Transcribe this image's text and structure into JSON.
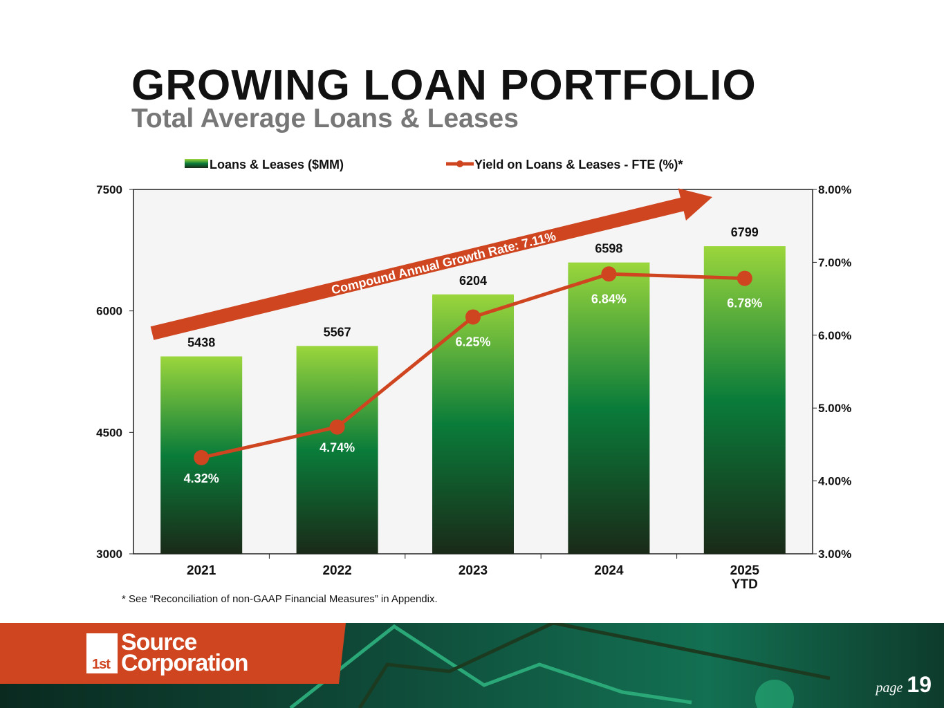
{
  "header": {
    "title": "GROWING LOAN PORTFOLIO",
    "subtitle": "Total Average Loans & Leases"
  },
  "chart_data": {
    "type": "bar+line",
    "categories": [
      "2021",
      "2022",
      "2023",
      "2024",
      "2025\nYTD"
    ],
    "category_lines": [
      [
        "2021"
      ],
      [
        "2022"
      ],
      [
        "2023"
      ],
      [
        "2024"
      ],
      [
        "2025",
        "YTD"
      ]
    ],
    "series": [
      {
        "name": "Loans & Leases ($MM)",
        "type": "bar",
        "axis": "left",
        "values": [
          5438,
          5567,
          6204,
          6598,
          6799
        ],
        "labels": [
          "5438",
          "5567",
          "6204",
          "6598",
          "6799"
        ]
      },
      {
        "name": "Yield on Loans & Leases - FTE (%)*",
        "type": "line",
        "axis": "right",
        "values": [
          4.32,
          4.74,
          6.25,
          6.84,
          6.78
        ],
        "labels": [
          "4.32%",
          "4.74%",
          "6.25%",
          "6.84%",
          "6.78%"
        ]
      }
    ],
    "left_axis": {
      "range": [
        3000,
        7500
      ],
      "ticks": [
        "3000",
        "4500",
        "6000",
        "7500"
      ]
    },
    "right_axis": {
      "range": [
        3,
        8
      ],
      "ticks": [
        "3.00%",
        "4.00%",
        "5.00%",
        "6.00%",
        "7.00%",
        "8.00%"
      ]
    },
    "annotation": "Compound Annual Growth Rate: 7.11%",
    "legend_position": "top",
    "colors": {
      "bar_top": "#9bd63c",
      "bar_mid": "#0a7c3a",
      "bar_bottom": "#1a2a18",
      "line": "#cf4520",
      "plot_bg": "#f5f5f5"
    }
  },
  "footnote": "* See “Reconciliation of non-GAAP Financial Measures” in Appendix.",
  "footer": {
    "logo_line1": "Source",
    "logo_line2": "Corporation",
    "logo_mark": "1st",
    "page_word": "page",
    "page_number": "19"
  }
}
